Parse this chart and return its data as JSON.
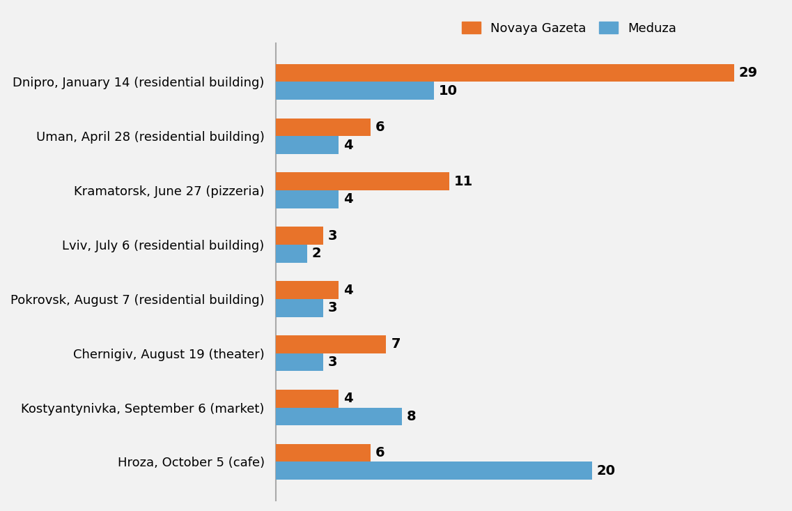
{
  "categories": [
    "Dnipro, January 14 (residential building)",
    "Uman, April 28 (residential building)",
    "Kramatorsk, June 27 (pizzeria)",
    "Lviv, July 6 (residential building)",
    "Pokrovsk, August 7 (residential building)",
    "Chernigiv, August 19 (theater)",
    "Kostyantynivka, September 6 (market)",
    "Hroza, October 5 (cafe)"
  ],
  "novaya_gazeta": [
    29,
    6,
    11,
    3,
    4,
    7,
    4,
    6
  ],
  "meduza": [
    10,
    4,
    4,
    2,
    3,
    3,
    8,
    20
  ],
  "color_ng": "#E8732A",
  "color_mz": "#5BA3D0",
  "legend_labels": [
    "Novaya Gazeta",
    "Meduza"
  ],
  "background_color": "#F2F2F2",
  "bar_height": 0.33,
  "tick_fontsize": 13,
  "value_fontsize": 14,
  "legend_fontsize": 13,
  "xlim": [
    0,
    32
  ]
}
